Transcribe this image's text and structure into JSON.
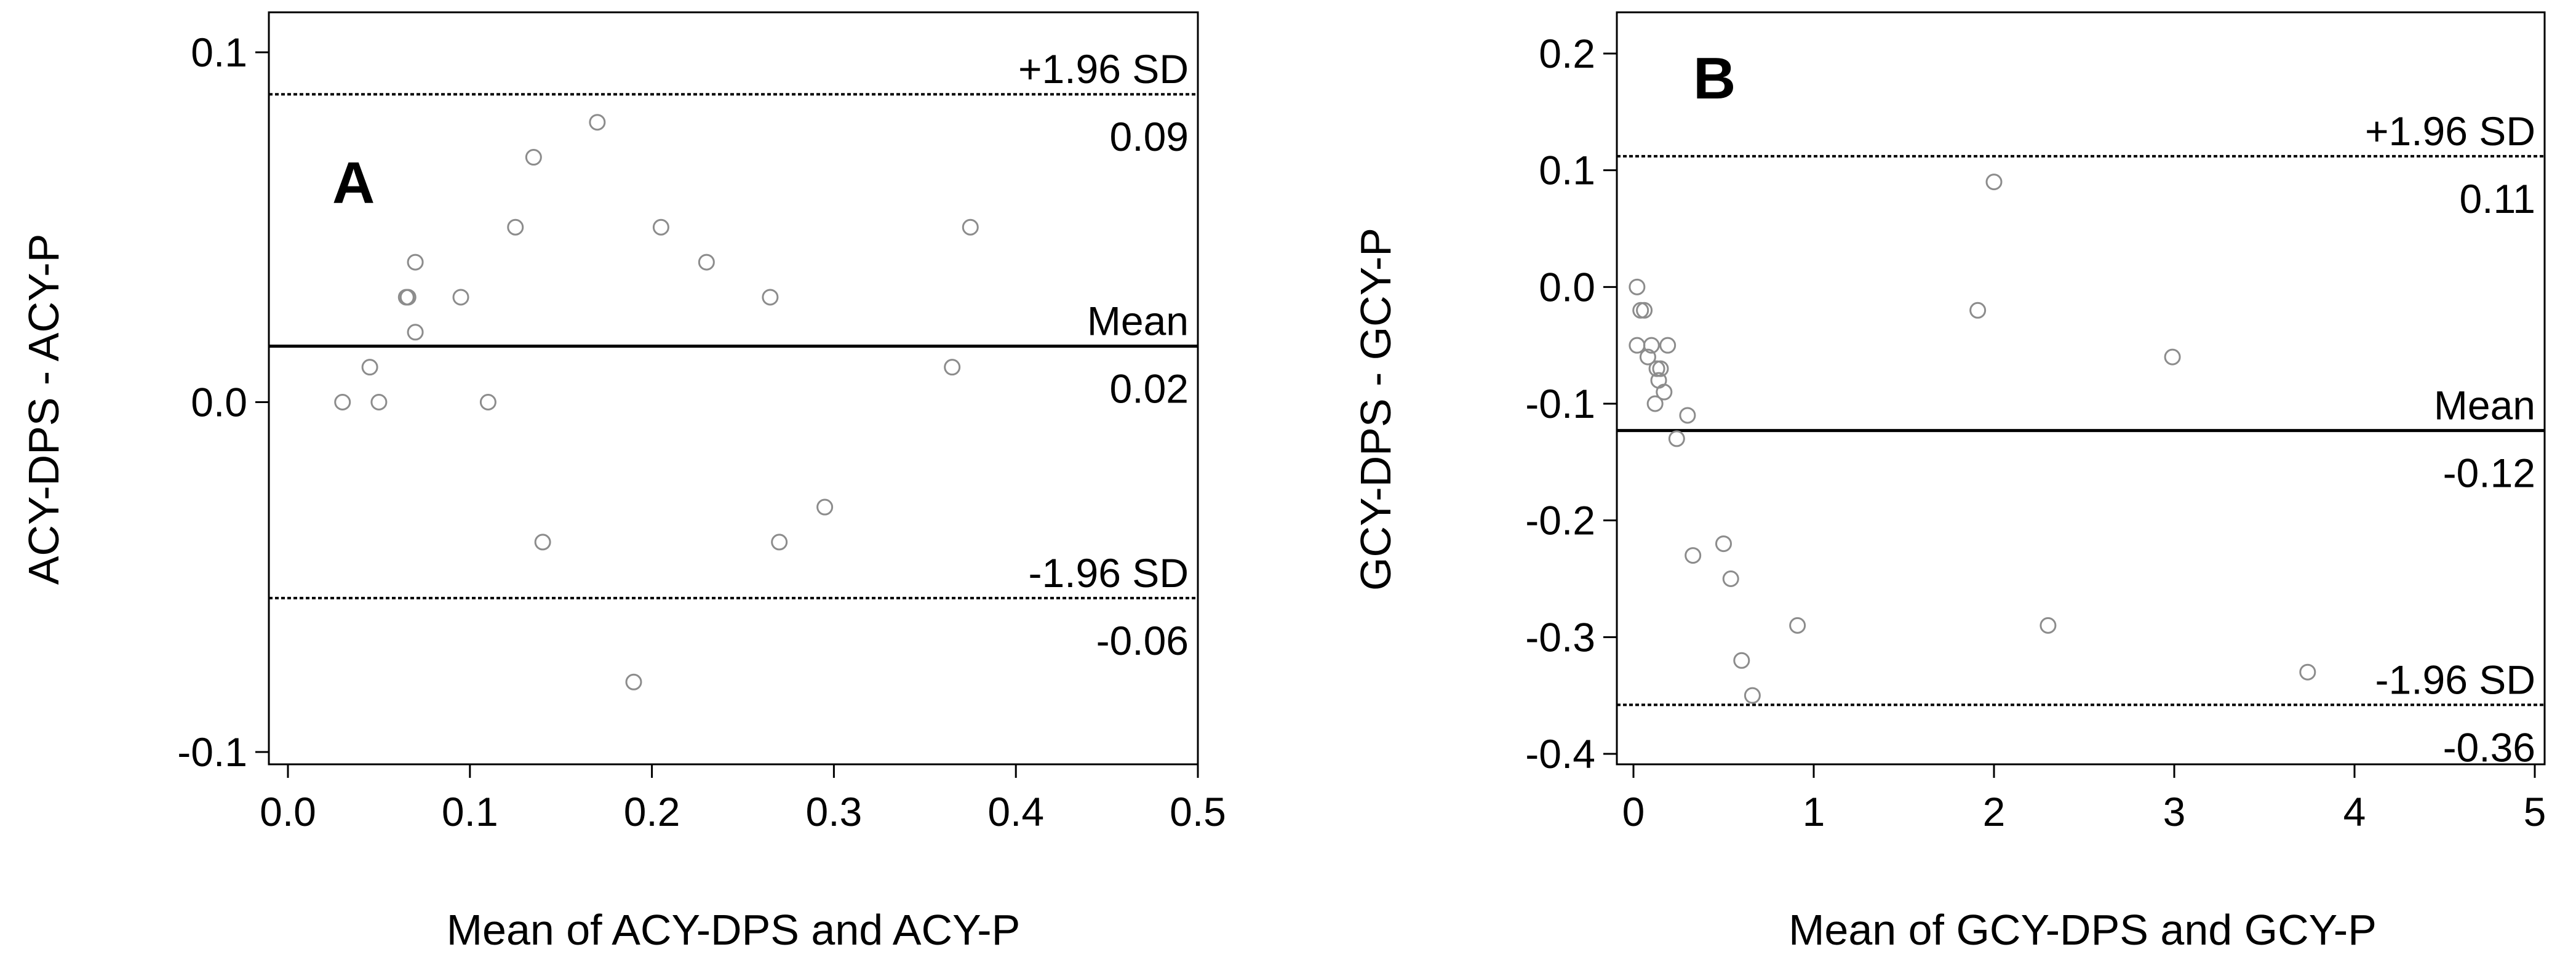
{
  "chart_data": [
    {
      "type": "scatter",
      "plot_kind": "Bland-Altman",
      "panel_label": "A",
      "xlabel": "Mean of ACY-DPS and ACY-P",
      "ylabel": "ACY-DPS - ACY-P",
      "xlim": [
        0,
        0.5
      ],
      "ylim": [
        -0.1,
        0.1
      ],
      "xticks": [
        0.0,
        0.1,
        0.2,
        0.3,
        0.4,
        0.5
      ],
      "xtick_labels": [
        "0.0",
        "0.1",
        "0.2",
        "0.3",
        "0.4",
        "0.5"
      ],
      "yticks": [
        -0.1,
        0.0,
        0.1
      ],
      "ytick_labels": [
        "-0.1",
        "0.0",
        "0.1"
      ],
      "grid": false,
      "reference_lines": [
        {
          "name": "+1.96 SD",
          "value": 0.088,
          "value_label": "0.09",
          "style": "dashed"
        },
        {
          "name": "Mean",
          "value": 0.016,
          "value_label": "0.02",
          "style": "solid"
        },
        {
          "name": "-1.96 SD",
          "value": -0.056,
          "value_label": "-0.06",
          "style": "dashed"
        }
      ],
      "points": {
        "x": [
          0.03,
          0.045,
          0.05,
          0.065,
          0.066,
          0.07,
          0.07,
          0.095,
          0.11,
          0.125,
          0.135,
          0.14,
          0.17,
          0.19,
          0.205,
          0.23,
          0.265,
          0.27,
          0.295,
          0.365,
          0.375
        ],
        "y": [
          0.0,
          0.01,
          0.0,
          0.03,
          0.03,
          0.04,
          0.02,
          0.03,
          0.0,
          0.05,
          0.07,
          -0.04,
          0.08,
          -0.08,
          0.05,
          0.04,
          0.03,
          -0.04,
          -0.03,
          0.01,
          0.05
        ]
      },
      "marker_color": "#8c8c8c",
      "line_color": "#000000"
    },
    {
      "type": "scatter",
      "plot_kind": "Bland-Altman",
      "panel_label": "B",
      "xlabel": "Mean of GCY-DPS and GCY-P",
      "ylabel": "GCY-DPS - GCY-P",
      "xlim": [
        0,
        5
      ],
      "ylim": [
        -0.4,
        0.2
      ],
      "xticks": [
        0,
        1,
        2,
        3,
        4,
        5
      ],
      "xtick_labels": [
        "0",
        "1",
        "2",
        "3",
        "4",
        "5"
      ],
      "yticks": [
        -0.4,
        -0.3,
        -0.2,
        -0.1,
        0.0,
        0.1,
        0.2
      ],
      "ytick_labels": [
        "-0.4",
        "-0.3",
        "-0.2",
        "-0.1",
        "0.0",
        "0.1",
        "0.2"
      ],
      "grid": false,
      "reference_lines": [
        {
          "name": "+1.96 SD",
          "value": 0.112,
          "value_label": "0.11",
          "style": "dashed"
        },
        {
          "name": "Mean",
          "value": -0.123,
          "value_label": "-0.12",
          "style": "solid"
        },
        {
          "name": "-1.96 SD",
          "value": -0.358,
          "value_label": "-0.36",
          "style": "dashed"
        }
      ],
      "points": {
        "x": [
          0.02,
          0.02,
          0.04,
          0.06,
          0.08,
          0.1,
          0.12,
          0.13,
          0.14,
          0.15,
          0.17,
          0.19,
          0.24,
          0.3,
          0.33,
          0.5,
          0.54,
          0.6,
          0.66,
          0.91,
          1.91,
          2.0,
          2.3,
          2.99,
          3.74
        ],
        "y": [
          0.0,
          -0.05,
          -0.02,
          -0.02,
          -0.06,
          -0.05,
          -0.1,
          -0.07,
          -0.08,
          -0.07,
          -0.09,
          -0.05,
          -0.13,
          -0.11,
          -0.23,
          -0.22,
          -0.25,
          -0.32,
          -0.35,
          -0.29,
          -0.02,
          0.09,
          -0.29,
          -0.06,
          -0.33
        ]
      },
      "marker_color": "#8c8c8c",
      "line_color": "#000000"
    }
  ]
}
